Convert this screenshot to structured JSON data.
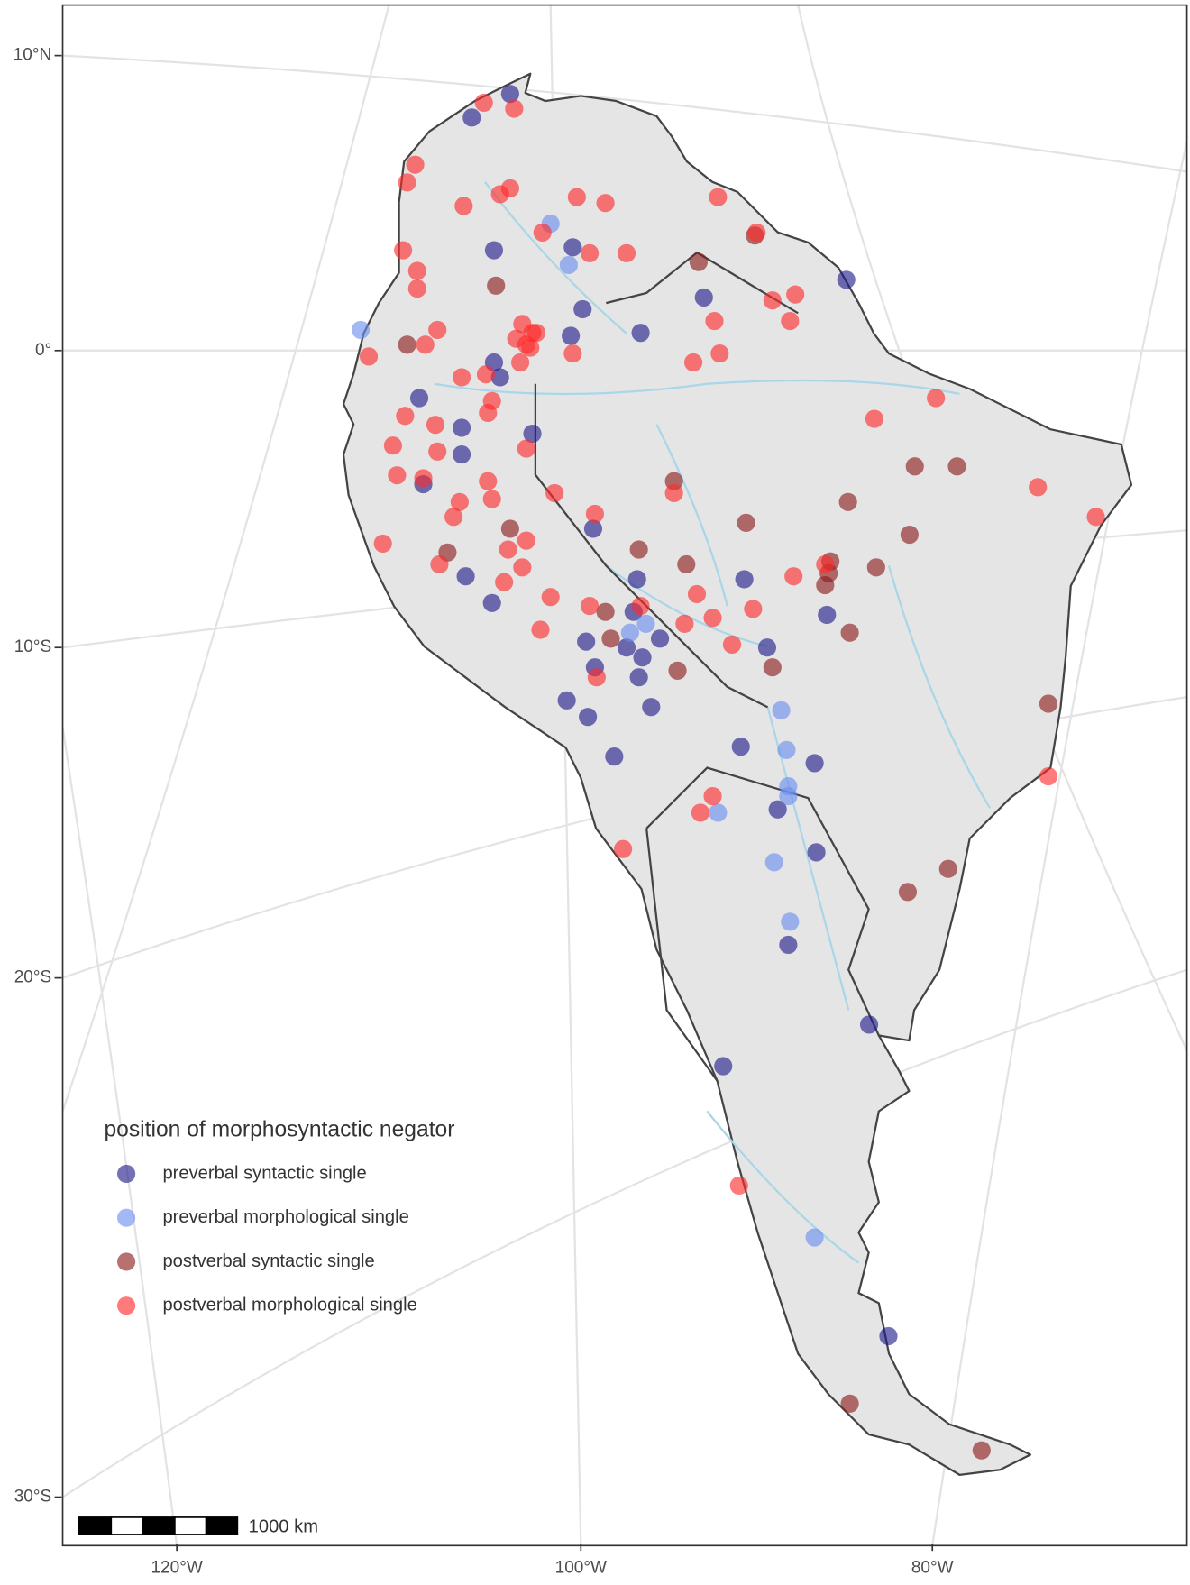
{
  "chart_data": {
    "type": "scatter",
    "legend_title": "position of morphosyntactic negator",
    "legend": "bottom-left",
    "grid": true,
    "xlim": [
      -125.7,
      -65.5
    ],
    "ylim": [
      11.7,
      -30.9
    ],
    "xticks": [
      {
        "value": -120,
        "label": "120°W"
      },
      {
        "value": -100,
        "label": "100°W"
      },
      {
        "value": -80,
        "label": "80°W"
      }
    ],
    "yticks": [
      {
        "value": 10,
        "label": "10°N"
      },
      {
        "value": 0,
        "label": "0°"
      },
      {
        "value": -10,
        "label": "10°S"
      },
      {
        "value": -20,
        "label": "20°S"
      },
      {
        "value": -30,
        "label": "30°S"
      }
    ],
    "scale_bar": {
      "label": "1000 km"
    },
    "series": [
      {
        "name": "preverbal syntactic single",
        "color": "#1f1a8a",
        "x": [
          -103.5,
          -105.4,
          -104.3,
          -100.4,
          -99.9,
          -100.5,
          -93.0,
          -96.6,
          -104.3,
          -104.0,
          -108.0,
          -105.9,
          -105.9,
          -107.8,
          -102.4,
          -99.3,
          -105.7,
          -104.4,
          -96.8,
          -90.7,
          -97.0,
          -95.5,
          -99.7,
          -99.2,
          -97.4,
          -96.5,
          -96.7,
          -96.0,
          -100.7,
          -99.6,
          -98.1,
          -89.4,
          -86.0,
          -90.9,
          -86.7,
          -88.8,
          -86.6,
          -88.2,
          -83.6,
          -91.9,
          -82.5,
          -84.9
        ],
        "values": [
          8.7,
          7.9,
          3.4,
          3.5,
          1.4,
          0.5,
          1.8,
          0.6,
          -0.4,
          -0.9,
          -1.6,
          -2.6,
          -3.5,
          -4.5,
          -2.8,
          -6.0,
          -7.6,
          -8.5,
          -7.7,
          -7.7,
          -8.8,
          -9.7,
          -9.8,
          -10.6,
          -10.0,
          -10.3,
          -10.9,
          -11.8,
          -11.6,
          -12.1,
          -13.3,
          -10.0,
          -8.9,
          -13.0,
          -13.5,
          -14.9,
          -16.2,
          -19.0,
          -20.9,
          -21.7,
          -26.9,
          2.4
        ]
      },
      {
        "name": "preverbal morphological single",
        "color": "#6b8ef0",
        "x": [
          -101.5,
          -100.6,
          -110.9,
          -96.3,
          -97.2,
          -88.6,
          -88.3,
          -88.2,
          -88.2,
          -92.2,
          -89.0,
          -88.1,
          -86.7
        ],
        "values": [
          4.3,
          2.9,
          0.7,
          -9.2,
          -9.5,
          -11.9,
          -13.1,
          -14.2,
          -14.5,
          -15.0,
          -16.5,
          -18.3,
          -25.0
        ]
      },
      {
        "name": "postverbal syntactic single",
        "color": "#8b1a1a",
        "x": [
          -104.2,
          -108.6,
          -93.3,
          -90.1,
          -94.7,
          -90.6,
          -84.8,
          -81.0,
          -78.6,
          -81.3,
          -103.5,
          -106.6,
          -96.7,
          -94.0,
          -85.8,
          -85.9,
          -86.1,
          -83.2,
          -98.6,
          -98.3,
          -94.5,
          -89.1,
          -84.7,
          -73.4,
          -79.1,
          -81.4,
          -84.7,
          -77.2
        ],
        "values": [
          2.2,
          0.2,
          3.0,
          3.9,
          -4.4,
          -5.8,
          -5.1,
          -3.9,
          -3.9,
          -6.2,
          -6.0,
          -6.8,
          -6.7,
          -7.2,
          -7.1,
          -7.5,
          -7.9,
          -7.3,
          -8.8,
          -9.7,
          -10.7,
          -10.6,
          -9.5,
          -11.7,
          -16.7,
          -17.4,
          -28.2,
          -29.1
        ]
      },
      {
        "name": "postverbal morphological single",
        "color": "#ff2a2a",
        "x": [
          -104.8,
          -103.3,
          -108.2,
          -108.6,
          -105.8,
          -104.0,
          -103.5,
          -100.2,
          -98.6,
          -101.9,
          -108.8,
          -108.1,
          -108.1,
          -99.5,
          -97.4,
          -107.1,
          -107.7,
          -110.5,
          -104.7,
          -102.9,
          -102.4,
          -102.7,
          -102.2,
          -103.2,
          -103.0,
          -102.5,
          -100.4,
          -105.9,
          -104.4,
          -104.6,
          -108.7,
          -107.2,
          -109.3,
          -107.1,
          -102.7,
          -109.1,
          -107.8,
          -104.6,
          -104.4,
          -106.0,
          -101.3,
          -106.3,
          -99.2,
          -109.8,
          -102.7,
          -103.6,
          -107.0,
          -102.9,
          -103.8,
          -87.9,
          -101.5,
          -102.0,
          -99.5,
          -96.6,
          -93.4,
          -92.5,
          -94.1,
          -90.2,
          -91.4,
          -99.1,
          -93.6,
          -92.1,
          -92.2,
          -90.0,
          -89.1,
          -87.8,
          -88.1,
          -92.4,
          -83.3,
          -79.8,
          -74.0,
          -70.7,
          -73.4,
          -92.5,
          -93.2,
          -97.6,
          -91.0,
          -86.1,
          -94.7
        ],
        "values": [
          8.4,
          8.2,
          6.3,
          5.7,
          4.9,
          5.3,
          5.5,
          5.2,
          5.0,
          4.0,
          3.4,
          2.7,
          2.1,
          3.3,
          3.3,
          0.7,
          0.2,
          -0.2,
          -0.8,
          0.9,
          0.6,
          0.2,
          0.6,
          0.4,
          -0.4,
          0.1,
          -0.1,
          -0.9,
          -1.7,
          -2.1,
          -2.2,
          -2.5,
          -3.2,
          -3.4,
          -3.3,
          -4.2,
          -4.3,
          -4.4,
          -5.0,
          -5.1,
          -4.8,
          -5.6,
          -5.5,
          -6.5,
          -6.4,
          -6.7,
          -7.2,
          -7.3,
          -7.8,
          -7.6,
          -8.3,
          -9.4,
          -8.6,
          -8.6,
          -8.2,
          -9.0,
          -9.2,
          -8.7,
          -9.9,
          -10.9,
          -0.4,
          -0.1,
          5.2,
          4.0,
          1.7,
          1.9,
          1.0,
          1.0,
          -2.3,
          -1.6,
          -4.6,
          -5.6,
          -13.9,
          -14.5,
          -15.0,
          -16.1,
          -24.0,
          -7.2,
          -4.8
        ]
      }
    ]
  }
}
